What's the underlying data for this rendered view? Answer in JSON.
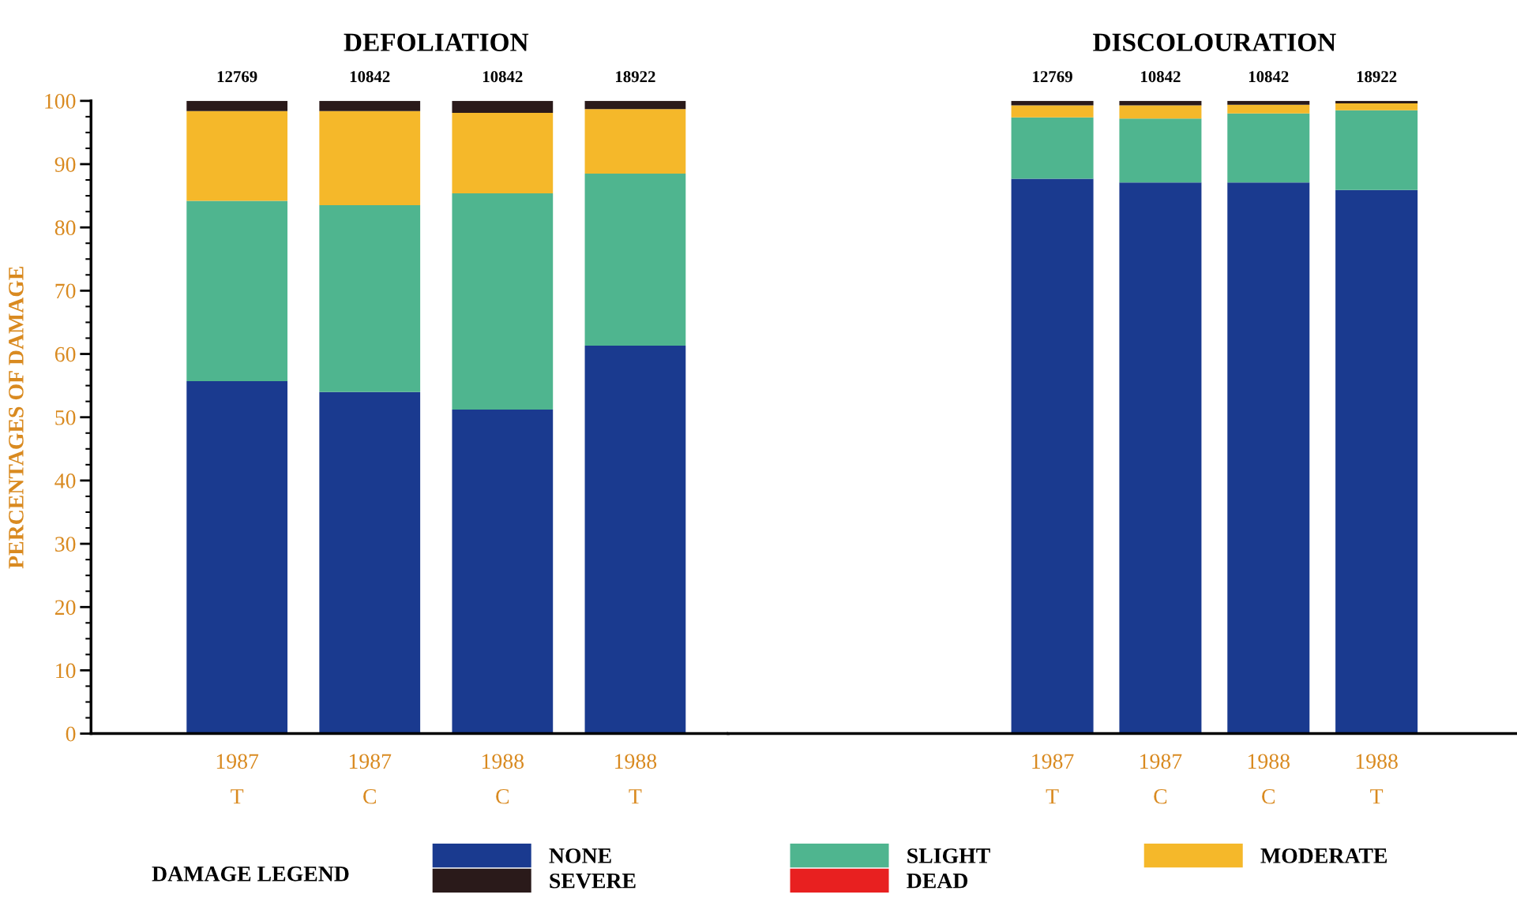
{
  "chart_data": [
    {
      "type": "bar",
      "title": "DEFOLIATION",
      "ylabel": "PERCENTAGES OF DAMAGE",
      "categories": [
        "1987\nT",
        "1987\nC",
        "1988\nC",
        "1988\nT"
      ],
      "stacked": true,
      "ylim": [
        0,
        100
      ],
      "yticks": [
        0,
        10,
        20,
        30,
        40,
        50,
        60,
        70,
        80,
        90,
        100
      ],
      "grid": false,
      "legend": "bottom",
      "legend_title": "DAMAGE LEGEND",
      "annotations": [
        {
          "text": "12769",
          "x": "1987\nT",
          "y": 100
        },
        {
          "text": "10842",
          "x": "1987\nC",
          "y": 100
        },
        {
          "text": "10842",
          "x": "1988\nC",
          "y": 100
        },
        {
          "text": "18922",
          "x": "1988\nT",
          "y": 100
        }
      ],
      "series": [
        {
          "name": "NONE",
          "color": "#1a3a8f",
          "values": [
            55.7,
            54.0,
            51.2,
            61.3
          ]
        },
        {
          "name": "SLIGHT",
          "color": "#4fb58f",
          "values": [
            28.5,
            29.5,
            34.2,
            27.2
          ]
        },
        {
          "name": "MODERATE",
          "color": "#f5b82a",
          "values": [
            14.2,
            14.9,
            12.7,
            10.2
          ]
        },
        {
          "name": "SEVERE",
          "color": "#2a1a1a",
          "values": [
            1.6,
            1.6,
            1.9,
            1.3
          ]
        },
        {
          "name": "DEAD",
          "color": "#e82020",
          "values": [
            0,
            0,
            0,
            0
          ]
        }
      ]
    },
    {
      "type": "bar",
      "title": "DISCOLOURATION",
      "categories": [
        "1987\nT",
        "1987\nC",
        "1988\nC",
        "1988\nT"
      ],
      "stacked": true,
      "ylim": [
        0,
        100
      ],
      "tick_labels": "x",
      "grid": false,
      "annotations": [
        {
          "text": "12769",
          "x": "1987\nT",
          "y": 100
        },
        {
          "text": "10842",
          "x": "1987\nC",
          "y": 100
        },
        {
          "text": "10842",
          "x": "1988\nC",
          "y": 100
        },
        {
          "text": "18922",
          "x": "1988\nT",
          "y": 100
        }
      ],
      "series": [
        {
          "color": "#1a3a8f",
          "values": [
            87.7,
            87.1,
            87.1,
            85.9
          ]
        },
        {
          "color": "#4fb58f",
          "values": [
            9.7,
            10.1,
            10.9,
            12.6
          ]
        },
        {
          "color": "#f5b82a",
          "values": [
            1.9,
            2.1,
            1.4,
            1.1
          ]
        },
        {
          "color": "#2a1a1a",
          "values": [
            0.7,
            0.7,
            0.6,
            0.4
          ]
        },
        {
          "color": "#e82020",
          "values": [
            0,
            0,
            0,
            0
          ]
        }
      ]
    }
  ]
}
